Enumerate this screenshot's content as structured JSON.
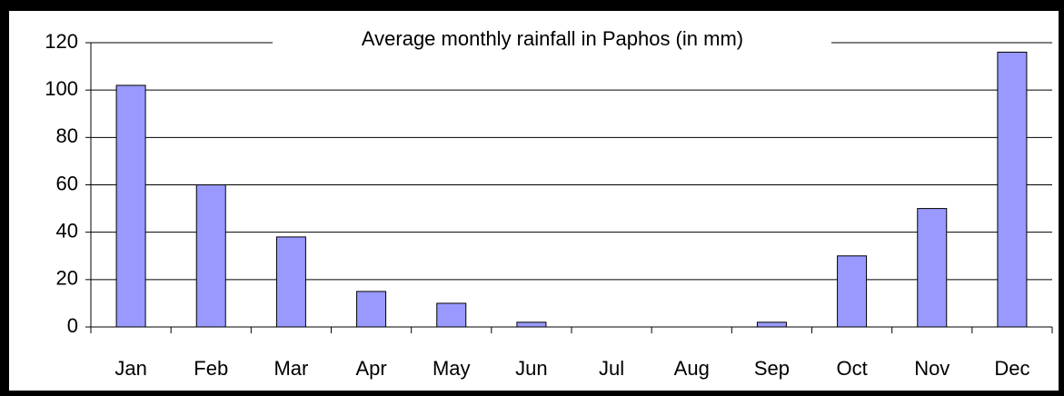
{
  "chart_data": {
    "type": "bar",
    "title": "Average monthly rainfall in Paphos (in mm)",
    "categories": [
      "Jan",
      "Feb",
      "Mar",
      "Apr",
      "May",
      "Jun",
      "Jul",
      "Aug",
      "Sep",
      "Oct",
      "Nov",
      "Dec"
    ],
    "values": [
      102,
      60,
      38,
      15,
      10,
      2,
      0,
      0,
      2,
      30,
      50,
      116
    ],
    "color": "#9999ff",
    "ylim": [
      0,
      120
    ],
    "yticks": [
      0,
      20,
      40,
      60,
      80,
      100,
      120
    ],
    "grid": true
  }
}
